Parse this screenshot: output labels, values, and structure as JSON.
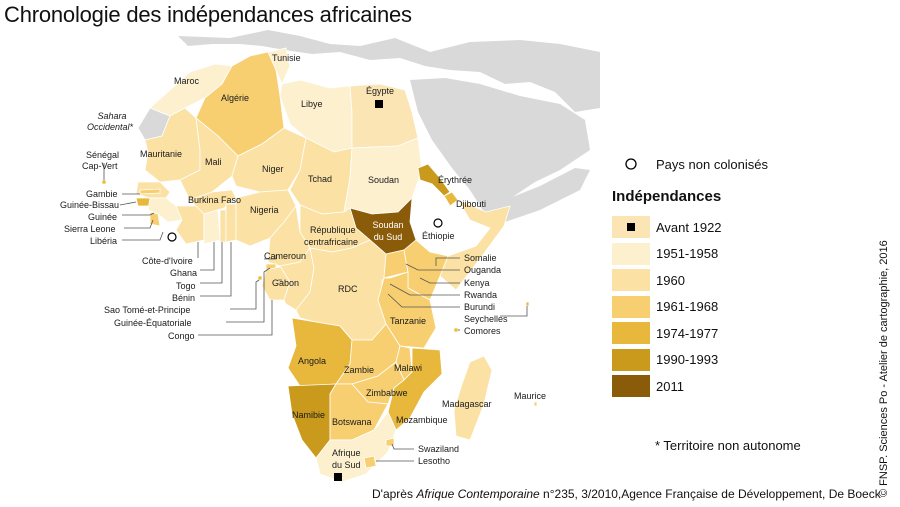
{
  "title": "Chronologie des indépendances africaines",
  "colors": {
    "ocean": "#ffffff",
    "other_land": "#d9d9d9",
    "border": "#ffffff",
    "uncolonized": "#ffffff",
    "avant_1922": "#fbe5b5",
    "c1951_1958": "#fdf0cf",
    "c1960": "#fbe1a3",
    "c1961_1968": "#f7cf71",
    "c1974_1977": "#e8b83c",
    "c1990_1993": "#c99a1c",
    "c2011": "#8a5c0a",
    "leader": "#555555"
  },
  "legend": {
    "uncolonized_label": "Pays non colonisés",
    "heading": "Indépendances",
    "items": [
      {
        "label": "Avant 1922",
        "color_key": "avant_1922",
        "marker": "square"
      },
      {
        "label": "1951-1958",
        "color_key": "c1951_1958"
      },
      {
        "label": "1960",
        "color_key": "c1960"
      },
      {
        "label": "1961-1968",
        "color_key": "c1961_1968"
      },
      {
        "label": "1974-1977",
        "color_key": "c1974_1977"
      },
      {
        "label": "1990-1993",
        "color_key": "c1990_1993"
      },
      {
        "label": "2011",
        "color_key": "c2011"
      }
    ]
  },
  "footnote": "* Territoire non autonome",
  "source": {
    "prefix": "D'après ",
    "journal": "Afrique Contemporaine",
    "rest": " n°235, 3/2010,Agence Française de Développement, De Boeck"
  },
  "credit": "© FNSP. Sciences Po - Atelier de cartographie, 2016",
  "countries": {
    "maroc": "Maroc",
    "algerie": "Algérie",
    "tunisie": "Tunisie",
    "libye": "Libye",
    "egypte": "Égypte",
    "sahara1": "Sahara",
    "sahara2": "Occidental*",
    "mauritanie": "Mauritanie",
    "mali": "Mali",
    "niger": "Niger",
    "tchad": "Tchad",
    "soudan": "Soudan",
    "erythree": "Érythrée",
    "djibouti": "Djibouti",
    "senegal": "Sénégal",
    "capvert": "Cap-Vert",
    "gambie": "Gambie",
    "guineebissau": "Guinée-Bissau",
    "guinee": "Guinée",
    "sierraleone": "Sierra Leone",
    "liberia": "Libéria",
    "burkina": "Burkina Faso",
    "nigeria": "Nigeria",
    "rca1": "République",
    "rca2": "centrafricaine",
    "soudansud1": "Soudan",
    "soudansud2": "du Sud",
    "ethiopie": "Éthiopie",
    "cotedivoire": "Côte-d'Ivoire",
    "ghana": "Ghana",
    "togo": "Togo",
    "benin": "Bénin",
    "cameroun": "Cameroun",
    "gabon": "Gabon",
    "rdc": "RDC",
    "somalie": "Somalie",
    "ouganda": "Ouganda",
    "kenya": "Kenya",
    "rwanda": "Rwanda",
    "burundi": "Burundi",
    "seychelles": "Seychelles",
    "comores": "Comores",
    "saotome": "Sao Tomé-et-Principe",
    "guineeeq": "Guinée-Équatoriale",
    "congo": "Congo",
    "tanzanie": "Tanzanie",
    "angola": "Angola",
    "zambie": "Zambie",
    "malawi": "Malawi",
    "zimbabwe": "Zimbabwe",
    "namibie": "Namibie",
    "botswana": "Botswana",
    "mozambique": "Mozambique",
    "madagascar": "Madagascar",
    "maurice": "Maurice",
    "swaziland": "Swaziland",
    "lesotho": "Lesotho",
    "afriquesud1": "Afrique",
    "afriquesud2": "du Sud"
  }
}
